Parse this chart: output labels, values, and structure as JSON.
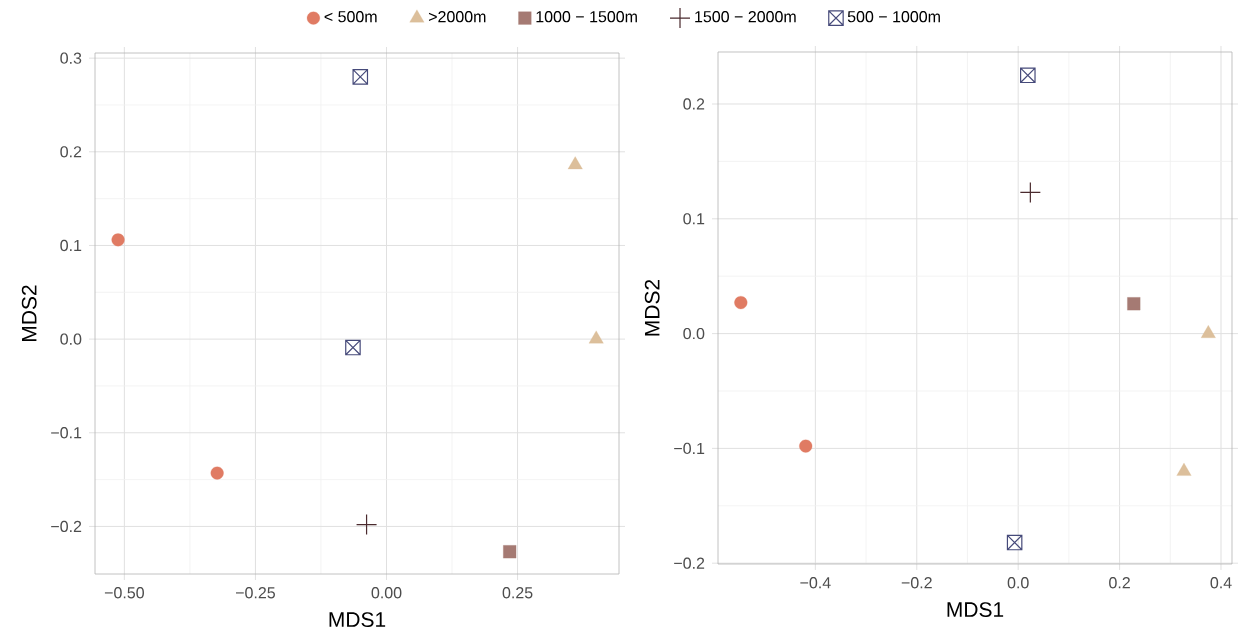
{
  "chart_data": [
    {
      "type": "scatter",
      "xlabel": "MDS1",
      "ylabel": "MDS2",
      "xlim": [
        -0.556,
        0.4435
      ],
      "ylim": [
        -0.2508,
        0.3055
      ],
      "xticks": [
        {
          "value": -0.5,
          "label": "−0.50"
        },
        {
          "value": -0.25,
          "label": "−0.25"
        },
        {
          "value": 0,
          "label": "0.00"
        },
        {
          "value": 0.25,
          "label": "0.25"
        }
      ],
      "yticks": [
        {
          "value": -0.2,
          "label": "−0.2"
        },
        {
          "value": -0.1,
          "label": "−0.1"
        },
        {
          "value": 0,
          "label": "0.0"
        },
        {
          "value": 0.1,
          "label": "0.1"
        },
        {
          "value": 0.2,
          "label": "0.2"
        },
        {
          "value": 0.3,
          "label": "0.3"
        }
      ],
      "grid": true,
      "legend": "top",
      "series": [
        {
          "name": "< 500m",
          "color": "#e07b63",
          "marker": "circle",
          "x": [
            -0.512,
            -0.323
          ],
          "values": [
            0.106,
            -0.143
          ]
        },
        {
          "name": ">2000m",
          "color": "#dcbf9b",
          "marker": "triangle",
          "x": [
            0.36,
            0.4
          ],
          "values": [
            0.186,
            0.0
          ]
        },
        {
          "name": "1000 − 1500m",
          "color": "#a57a73",
          "marker": "square",
          "x": [
            0.235
          ],
          "values": [
            -0.227
          ]
        },
        {
          "name": "1500 − 2000m",
          "color": "#4a2a2e",
          "x": [
            -0.038
          ],
          "values": [
            -0.198
          ]
        },
        {
          "name": "500 − 1000m",
          "color": "#464a7a",
          "marker": "cross",
          "x": [
            -0.05,
            -0.064
          ],
          "values": [
            0.28,
            -0.009
          ]
        }
      ]
    },
    {
      "type": "scatter",
      "xlabel": "MDS1",
      "ylabel": "MDS2",
      "xlim": [
        -0.592,
        0.4217
      ],
      "ylim": [
        -0.2007,
        0.2453
      ],
      "xticks": [
        {
          "value": -0.4,
          "label": "−0.4"
        },
        {
          "value": -0.2,
          "label": "−0.2"
        },
        {
          "value": 0,
          "label": "0.0"
        },
        {
          "value": 0.2,
          "label": "0.2"
        },
        {
          "value": 0.4,
          "label": "0.4"
        }
      ],
      "yticks": [
        {
          "value": -0.2,
          "label": "−0.2"
        },
        {
          "value": -0.1,
          "label": "−0.1"
        },
        {
          "value": 0,
          "label": "0.0"
        },
        {
          "value": 0.1,
          "label": "0.1"
        },
        {
          "value": 0.2,
          "label": "0.2"
        }
      ],
      "grid": true,
      "series": [
        {
          "color": "#e07b63",
          "marker": "circle",
          "x": [
            -0.547,
            -0.419
          ],
          "values": [
            0.027,
            -0.098
          ]
        },
        {
          "color": "#dcbf9b",
          "marker": "triangle",
          "x": [
            0.375,
            0.327
          ],
          "values": [
            0.0,
            -0.12
          ]
        },
        {
          "color": "#a57a73",
          "marker": "square",
          "x": [
            0.228
          ],
          "values": [
            0.026
          ]
        },
        {
          "color": "#4a2a2e",
          "x": [
            0.024
          ],
          "values": [
            0.123
          ]
        },
        {
          "color": "#464a7a",
          "marker": "cross",
          "x": [
            0.019,
            -0.007
          ],
          "values": [
            0.225,
            -0.182
          ]
        }
      ]
    }
  ]
}
